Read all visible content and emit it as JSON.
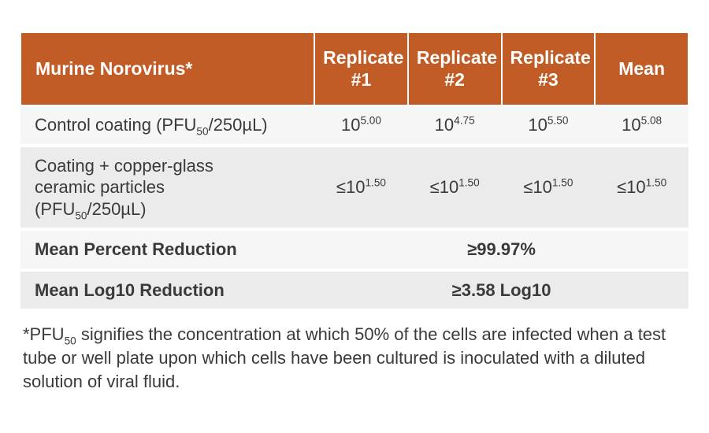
{
  "table": {
    "header_bg": "#c15c27",
    "header_fg": "#ffffff",
    "row_alt_a_bg": "#f6f6f6",
    "row_alt_b_bg": "#ebebeb",
    "text_color": "#3a3a3a",
    "font_size_header": 23,
    "font_size_body": 22,
    "columns": [
      {
        "label_html": "Murine Norovirus*",
        "align": "left"
      },
      {
        "label_html": "Replicate<br>#1",
        "align": "center"
      },
      {
        "label_html": "Replicate<br>#2",
        "align": "center"
      },
      {
        "label_html": "Replicate<br>#3",
        "align": "center"
      },
      {
        "label_html": "Mean",
        "align": "center"
      }
    ],
    "rows": [
      {
        "label_html": "Control coating (PFU<sub>50</sub>/250µL)",
        "cells_html": [
          "10<sup>5.00</sup>",
          "10<sup>4.75</sup>",
          "10<sup>5.50</sup>",
          "10<sup>5.08</sup>"
        ],
        "bold": false
      },
      {
        "label_html": "Coating + copper-glass<br>ceramic particles<br>(PFU<sub>50</sub>/250µL)",
        "cells_html": [
          "≤10<sup>1.50</sup>",
          "≤10<sup>1.50</sup>",
          "≤10<sup>1.50</sup>",
          "≤10<sup>1.50</sup>"
        ],
        "bold": false
      },
      {
        "label_html": "Mean Percent Reduction",
        "merged_value_html": "≥99.97%",
        "bold": true
      },
      {
        "label_html": "Mean Log10 Reduction",
        "merged_value_html": "≥3.58 Log10",
        "bold": true
      }
    ]
  },
  "footnote_html": "*PFU<sub>50</sub> signifies the concentration at which 50% of the cells are infected when a test tube or well plate upon which cells have been cultured is inoculated with a diluted solution of viral fluid."
}
